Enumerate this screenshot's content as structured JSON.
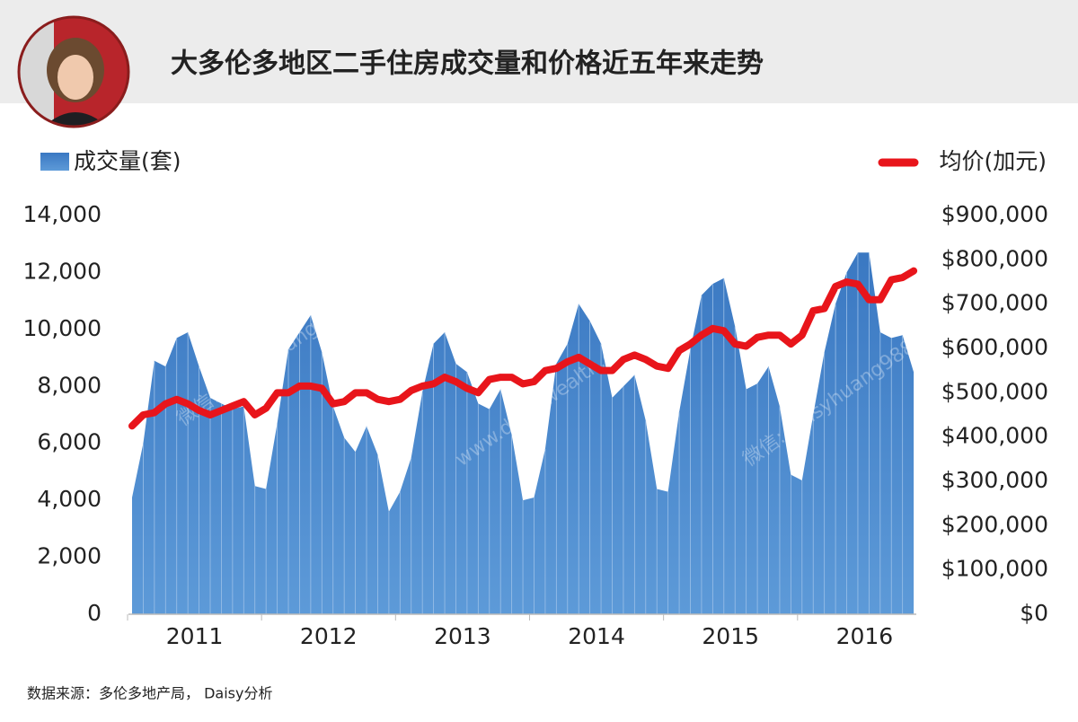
{
  "chart_data": {
    "type": "area-line",
    "title": "大多伦多地区二手住房成交量和价格近五年来走势",
    "source": "数据来源：多伦多地产局， Daisy分析",
    "watermarks": [
      "微信: daisyhuang988",
      "www.daisywealth.ca",
      "微信: daisyhuang988"
    ],
    "years": [
      "2011",
      "2012",
      "2013",
      "2014",
      "2015",
      "2016"
    ],
    "series": [
      {
        "name": "成交量(套)",
        "color": "#3f7fc6",
        "values": [
          4100,
          6000,
          8900,
          8700,
          9700,
          9900,
          8700,
          7600,
          7400,
          7200,
          7300,
          4500,
          4400,
          6700,
          9300,
          9900,
          10500,
          9200,
          7300,
          6200,
          5700,
          6600,
          5600,
          3600,
          4300,
          5500,
          7800,
          9500,
          9900,
          8800,
          8500,
          7400,
          7200,
          7900,
          6300,
          4000,
          4100,
          5800,
          8800,
          9500,
          10900,
          10300,
          9500,
          7600,
          8000,
          8400,
          6800,
          4400,
          4300,
          7100,
          9300,
          11200,
          11600,
          11800,
          10100,
          7900,
          8100,
          8700,
          7300,
          4900,
          4700,
          7000,
          9200,
          10900,
          12000,
          12700,
          12700,
          9900,
          9700,
          9800,
          8500
        ]
      },
      {
        "name": "均价(加元)",
        "color": "#e8151b",
        "axis": "y2",
        "values": [
          425000,
          450000,
          455000,
          475000,
          485000,
          475000,
          460000,
          450000,
          460000,
          470000,
          480000,
          450000,
          465000,
          500000,
          500000,
          515000,
          515000,
          510000,
          475000,
          480000,
          500000,
          500000,
          485000,
          480000,
          485000,
          505000,
          515000,
          520000,
          535000,
          525000,
          510000,
          500000,
          530000,
          535000,
          535000,
          520000,
          525000,
          550000,
          555000,
          570000,
          580000,
          565000,
          550000,
          550000,
          575000,
          585000,
          575000,
          560000,
          555000,
          595000,
          610000,
          630000,
          645000,
          640000,
          610000,
          605000,
          625000,
          630000,
          630000,
          610000,
          630000,
          685000,
          690000,
          740000,
          750000,
          745000,
          710000,
          710000,
          755000,
          760000,
          775000
        ]
      }
    ],
    "ylim": [
      0,
      14000
    ],
    "yticks": [
      0,
      {
        "value": 2000,
        "label": "2,000"
      },
      {
        "value": 4000,
        "label": "4,000"
      },
      {
        "value": 6000,
        "label": "6,000"
      },
      {
        "value": 8000,
        "label": "8,000"
      },
      {
        "value": 10000,
        "label": "10,000"
      },
      {
        "value": 12000,
        "label": "12,000"
      },
      {
        "value": 14000,
        "label": "14,000"
      }
    ],
    "y2lim": [
      0,
      900000
    ],
    "y2ticks": [
      {
        "value": 0,
        "label": "$0"
      },
      {
        "value": 100000,
        "label": "$100,000"
      },
      {
        "value": 200000,
        "label": "$200,000"
      },
      {
        "value": 300000,
        "label": "$300,000"
      },
      {
        "value": 400000,
        "label": "$400,000"
      },
      {
        "value": 500000,
        "label": "$500,000"
      },
      {
        "value": 600000,
        "label": "$600,000"
      },
      {
        "value": 700000,
        "label": "$700,000"
      },
      {
        "value": 800000,
        "label": "$800,000"
      },
      {
        "value": 900000,
        "label": "$900,000"
      }
    ]
  }
}
